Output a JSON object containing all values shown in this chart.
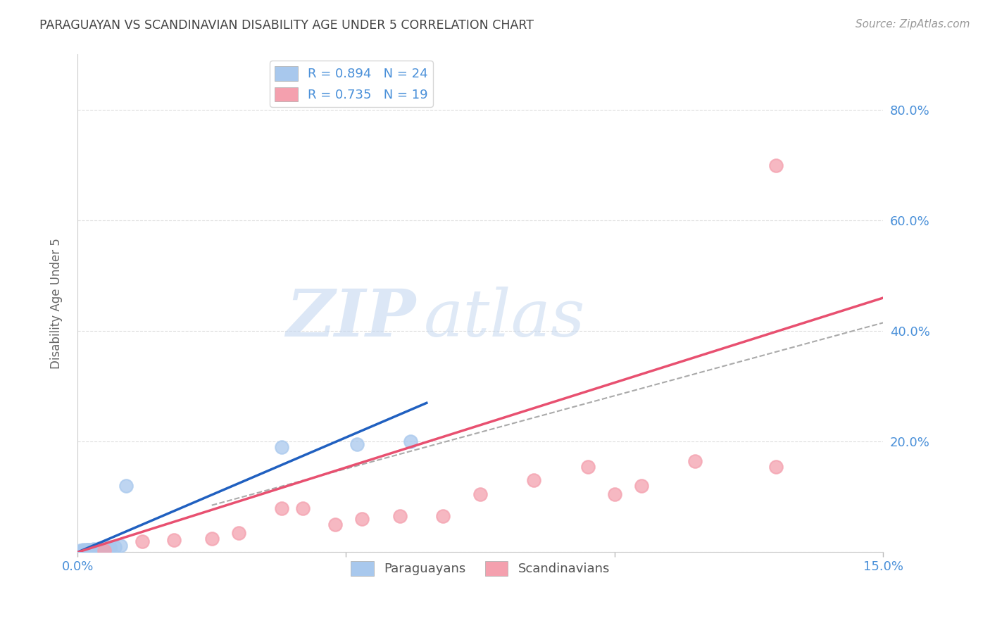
{
  "title": "PARAGUAYAN VS SCANDINAVIAN DISABILITY AGE UNDER 5 CORRELATION CHART",
  "source": "Source: ZipAtlas.com",
  "ylabel": "Disability Age Under 5",
  "xlim": [
    0,
    0.15
  ],
  "ylim": [
    0,
    0.9
  ],
  "ytick_positions": [
    0.0,
    0.2,
    0.4,
    0.6,
    0.8
  ],
  "paraguayan_x": [
    0.0005,
    0.001,
    0.001,
    0.0015,
    0.002,
    0.002,
    0.0025,
    0.003,
    0.003,
    0.003,
    0.004,
    0.004,
    0.004,
    0.005,
    0.005,
    0.005,
    0.006,
    0.006,
    0.007,
    0.008,
    0.009,
    0.038,
    0.052,
    0.062
  ],
  "paraguayan_y": [
    0.003,
    0.003,
    0.004,
    0.004,
    0.004,
    0.005,
    0.005,
    0.004,
    0.005,
    0.006,
    0.005,
    0.006,
    0.007,
    0.005,
    0.007,
    0.008,
    0.007,
    0.009,
    0.01,
    0.012,
    0.12,
    0.19,
    0.195,
    0.2
  ],
  "scandinavian_x": [
    0.005,
    0.012,
    0.018,
    0.025,
    0.03,
    0.038,
    0.042,
    0.048,
    0.053,
    0.06,
    0.068,
    0.075,
    0.085,
    0.095,
    0.1,
    0.105,
    0.115,
    0.13,
    0.13
  ],
  "scandinavian_y": [
    0.003,
    0.02,
    0.022,
    0.025,
    0.035,
    0.08,
    0.08,
    0.05,
    0.06,
    0.065,
    0.065,
    0.105,
    0.13,
    0.155,
    0.105,
    0.12,
    0.165,
    0.155,
    0.7
  ],
  "paraguayan_color": "#A8C8ED",
  "scandinavian_color": "#F4A0AE",
  "paraguayan_line_color": "#2060C0",
  "scandinavian_line_color": "#E85070",
  "par_line_x0": 0.0,
  "par_line_x1": 0.065,
  "par_line_y0": 0.0,
  "par_line_y1": 0.27,
  "sca_line_x0": 0.0,
  "sca_line_x1": 0.15,
  "sca_line_y0": 0.0,
  "sca_line_y1": 0.46,
  "dash_line_x0": 0.025,
  "dash_line_x1": 0.15,
  "dash_line_y0": 0.085,
  "dash_line_y1": 0.415,
  "legend_r_paraguayan": "R = 0.894",
  "legend_n_paraguayan": "N = 24",
  "legend_r_scandinavian": "R = 0.735",
  "legend_n_scandinavian": "N = 19",
  "background_color": "#ffffff",
  "grid_color": "#dddddd",
  "title_color": "#444444",
  "axis_label_color": "#4A90D9",
  "right_tick_color": "#4A90D9"
}
